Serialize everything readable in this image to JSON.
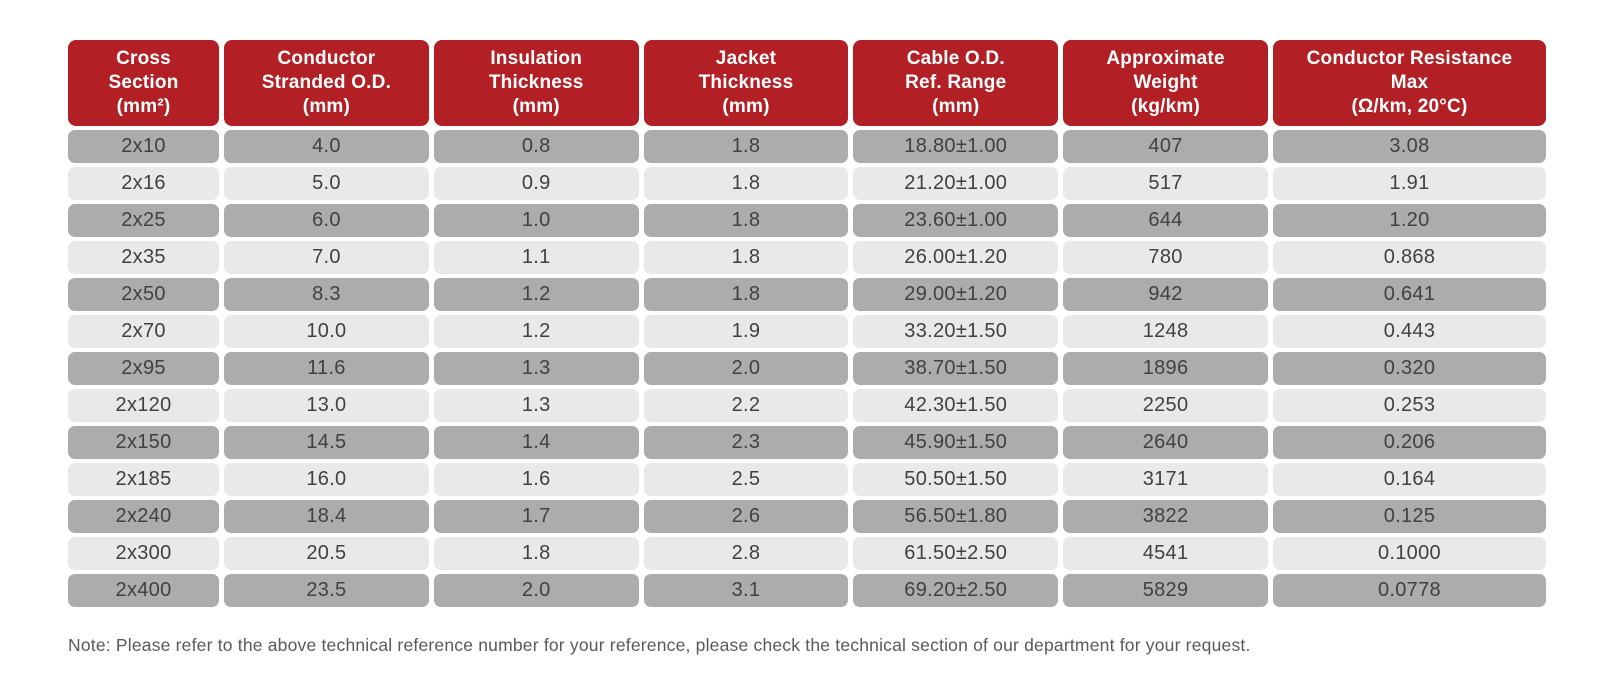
{
  "table": {
    "columns": [
      "Cross\nSection\n(mm²)",
      "Conductor\nStranded O.D.\n(mm)",
      "Insulation\nThickness\n(mm)",
      "Jacket\nThickness\n(mm)",
      "Cable O.D.\nRef. Range\n(mm)",
      "Approximate\nWeight\n(kg/km)",
      "Conductor Resistance\nMax\n(Ω/km, 20°C)"
    ],
    "rows": [
      [
        "2x10",
        "4.0",
        "0.8",
        "1.8",
        "18.80±1.00",
        "407",
        "3.08"
      ],
      [
        "2x16",
        "5.0",
        "0.9",
        "1.8",
        "21.20±1.00",
        "517",
        "1.91"
      ],
      [
        "2x25",
        "6.0",
        "1.0",
        "1.8",
        "23.60±1.00",
        "644",
        "1.20"
      ],
      [
        "2x35",
        "7.0",
        "1.1",
        "1.8",
        "26.00±1.20",
        "780",
        "0.868"
      ],
      [
        "2x50",
        "8.3",
        "1.2",
        "1.8",
        "29.00±1.20",
        "942",
        "0.641"
      ],
      [
        "2x70",
        "10.0",
        "1.2",
        "1.9",
        "33.20±1.50",
        "1248",
        "0.443"
      ],
      [
        "2x95",
        "11.6",
        "1.3",
        "2.0",
        "38.70±1.50",
        "1896",
        "0.320"
      ],
      [
        "2x120",
        "13.0",
        "1.3",
        "2.2",
        "42.30±1.50",
        "2250",
        "0.253"
      ],
      [
        "2x150",
        "14.5",
        "1.4",
        "2.3",
        "45.90±1.50",
        "2640",
        "0.206"
      ],
      [
        "2x185",
        "16.0",
        "1.6",
        "2.5",
        "50.50±1.50",
        "3171",
        "0.164"
      ],
      [
        "2x240",
        "18.4",
        "1.7",
        "2.6",
        "56.50±1.80",
        "3822",
        "0.125"
      ],
      [
        "2x300",
        "20.5",
        "1.8",
        "2.8",
        "61.50±2.50",
        "4541",
        "0.1000"
      ],
      [
        "2x400",
        "23.5",
        "2.0",
        "3.1",
        "69.20±2.50",
        "5829",
        "0.0778"
      ]
    ]
  },
  "note": "Note: Please refer to the above technical reference number for your reference, please check the technical section of our department for your request.",
  "colors": {
    "header_bg": "#B22025",
    "header_text": "#FFFFFF",
    "row_dark": "#ACACAC",
    "row_light": "#E9E9EA",
    "cell_text": "#414042",
    "note_text": "#58595B"
  }
}
